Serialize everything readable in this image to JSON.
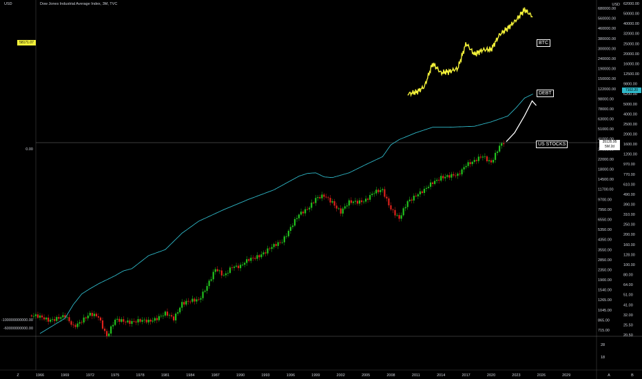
{
  "header": {
    "currency": "USD",
    "title": "Dow Jones Industrial Average Index, 3M, TVC"
  },
  "badges": {
    "btc": "58171.07",
    "debt": "7102.20",
    "stocks_price": "35135.95",
    "stocks_time": "5M 2d"
  },
  "annotations": {
    "btc": "BTC",
    "debt": "DEBT",
    "stocks": "US STOCKS"
  },
  "colors": {
    "up": "#22c31e",
    "down": "#e0221c",
    "debt": "#2fb8c8",
    "btc": "#f5f33a",
    "arrow": "#ffffff",
    "grid": "#444444"
  },
  "bottom_scale": [
    "28",
    "18"
  ],
  "corner_labels": {
    "left": "Z",
    "right_a": "A",
    "right_b": "B"
  },
  "chart_data": {
    "type": "candlestick",
    "timeframe": "3M",
    "x_ticks": [
      "1966",
      "1969",
      "1972",
      "1975",
      "1978",
      "1981",
      "1984",
      "1987",
      "1990",
      "1993",
      "1996",
      "1999",
      "2002",
      "2005",
      "2008",
      "2011",
      "2014",
      "2017",
      "2020",
      "2023",
      "2026",
      "2029"
    ],
    "y_axis_right": {
      "label": "USD",
      "scale": "log",
      "ticks": [
        "680000.00",
        "560000.00",
        "460000.00",
        "380000.00",
        "300000.00",
        "240000.00",
        "190000.00",
        "150000.00",
        "122000.00",
        "98000.00",
        "78000.00",
        "63000.00",
        "51000.00",
        "41000.00",
        "27000.00",
        "22000.00",
        "18000.00",
        "14500.00",
        "11700.00",
        "9700.00",
        "7950.00",
        "6550.00",
        "5350.00",
        "4350.00",
        "3550.00",
        "2850.00",
        "2350.00",
        "1900.00",
        "1540.00",
        "1265.00",
        "1045.00",
        "865.00",
        "715.00"
      ]
    },
    "y_axis_far_right": {
      "ticks": [
        "62000.00",
        "50000.00",
        "40000.00",
        "32000.00",
        "25000.00",
        "20000.00",
        "16000.00",
        "12500.00",
        "9800.00",
        "6200.00",
        "5000.00",
        "4000.00",
        "2500.00",
        "2000.00",
        "1600.00",
        "1200.00",
        "970.00",
        "770.00",
        "610.00",
        "490.00",
        "390.00",
        "310.00",
        "250.00",
        "200.00",
        "160.00",
        "128.00",
        "100.00",
        "80.00",
        "64.00",
        "51.00",
        "41.00",
        "32.00",
        "25.50",
        "20.50"
      ]
    },
    "y_axis_left": {
      "ticks": [
        "0.00",
        "-100000000000.00",
        "-60000000000.00"
      ]
    },
    "series": [
      {
        "name": "Dow Jones Industrial Average",
        "kind": "candles",
        "x": [
          1965,
          1967,
          1969,
          1970,
          1972,
          1973,
          1974,
          1975,
          1977,
          1979,
          1981,
          1982,
          1983,
          1985,
          1986,
          1987,
          1988,
          1989,
          1990,
          1991,
          1993,
          1995,
          1996,
          1997,
          1998,
          1999,
          2000,
          2001,
          2002,
          2003,
          2004,
          2005,
          2006,
          2007,
          2008,
          2009,
          2010,
          2011,
          2012,
          2013,
          2014,
          2015,
          2016,
          2017,
          2018,
          2019,
          2020,
          2021,
          2021.5
        ],
        "y": [
          950,
          870,
          920,
          760,
          960,
          930,
          620,
          850,
          840,
          840,
          980,
          880,
          1250,
          1300,
          1800,
          2500,
          2150,
          2700,
          2650,
          3050,
          3600,
          4600,
          6000,
          7800,
          9000,
          11100,
          11500,
          10300,
          8400,
          10100,
          10400,
          10800,
          12400,
          13300,
          9000,
          7100,
          10400,
          12000,
          13000,
          15500,
          17500,
          17500,
          18000,
          23000,
          24000,
          26800,
          24000,
          33000,
          35135.95
        ]
      },
      {
        "name": "DEBT",
        "kind": "line",
        "x": [
          1966,
          1969,
          1970,
          1971,
          1972,
          1973,
          1975,
          1976,
          1977,
          1979,
          1981,
          1983,
          1985,
          1988,
          1991,
          1994,
          1997,
          1998,
          1999,
          2000,
          2001,
          2003,
          2005,
          2007,
          2008,
          2009,
          2011,
          2013,
          2015,
          2018,
          2020,
          2022,
          2023,
          2024,
          2025
        ],
        "y": [
          100,
          140,
          190,
          240,
          270,
          300,
          360,
          400,
          420,
          560,
          640,
          920,
          1200,
          1550,
          1950,
          2400,
          3250,
          3450,
          3500,
          3200,
          3150,
          3500,
          4200,
          5000,
          6500,
          7300,
          8500,
          9600,
          9600,
          9800,
          10800,
          12300,
          14800,
          18300,
          20000
        ]
      },
      {
        "name": "BTC",
        "kind": "line",
        "x": [
          2010,
          2011,
          2012,
          2013,
          2014,
          2015,
          2016,
          2017,
          2018,
          2019,
          2020,
          2021,
          2022,
          2023,
          2024,
          2025
        ],
        "y": [
          95000,
          98000,
          110000,
          180000,
          148000,
          152000,
          162000,
          275000,
          218000,
          240000,
          242000,
          330000,
          380000,
          450000,
          560000,
          480000
        ]
      },
      {
        "name": "US STOCKS",
        "kind": "arrow",
        "x": [
          2021.8,
          2022.8,
          2024,
          2024.9,
          2025.4
        ],
        "y": [
          36500,
          44000,
          63000,
          86000,
          78000
        ]
      }
    ]
  }
}
